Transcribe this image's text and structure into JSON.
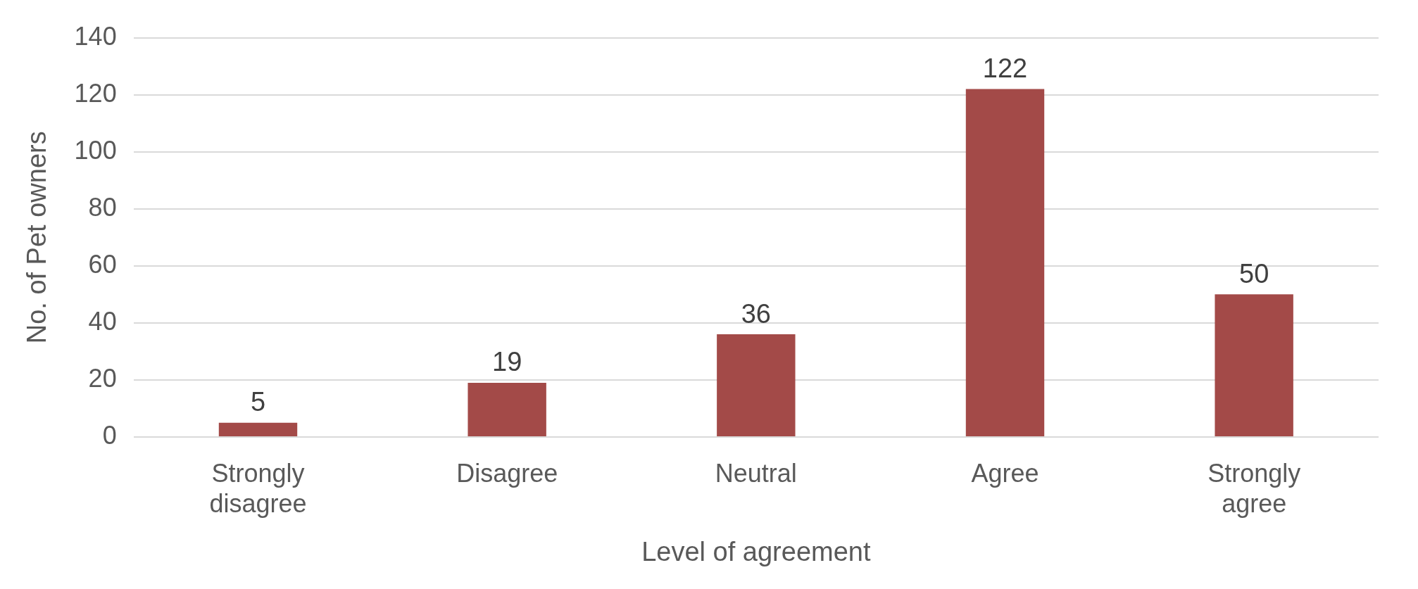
{
  "chart_data": {
    "type": "bar",
    "xlabel": "Level of agreement",
    "ylabel": "No. of Pet owners",
    "categories": [
      "Strongly disagree",
      "Disagree",
      "Neutral",
      "Agree",
      "Strongly agree"
    ],
    "values": [
      5,
      19,
      36,
      122,
      50
    ],
    "color": "#a34a48",
    "ylim": [
      0,
      140
    ],
    "yticks": [
      0,
      20,
      40,
      60,
      80,
      100,
      120,
      140
    ],
    "grid": "y",
    "data_labels": true,
    "legend": false
  }
}
